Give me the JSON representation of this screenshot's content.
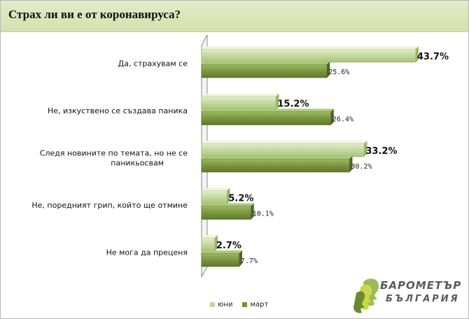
{
  "title": "Страх ли ви е от коронавируса?",
  "colors": {
    "june": "#c3d69b",
    "march": "#77933c",
    "june_dark": "#98b469",
    "march_dark": "#4f6228"
  },
  "chart_data": {
    "type": "bar",
    "orientation": "horizontal",
    "categories": [
      [
        "Да, страхувам се"
      ],
      [
        "Не, изкуствено се създава паника"
      ],
      [
        "Следя новините  по темата, но не се",
        "паникьосвам"
      ],
      [
        "Не, поредният грип, който ще отмине"
      ],
      [
        "Не мога да преценя"
      ]
    ],
    "series": [
      {
        "name": "юни",
        "values": [
          43.7,
          15.2,
          33.2,
          5.2,
          2.7
        ],
        "labels": [
          "43.7%",
          "15.2%",
          "33.2%",
          "5.2%",
          "2.7%"
        ]
      },
      {
        "name": "март",
        "values": [
          25.6,
          26.4,
          30.2,
          10.1,
          7.7
        ],
        "labels": [
          "25.6%",
          "26.4%",
          "30.2%",
          "10.1%",
          "7.7%"
        ]
      }
    ],
    "xlim": [
      0,
      50
    ],
    "legend_position": "bottom",
    "grid": false
  },
  "logo": {
    "line1": "БАРОМЕТЪР",
    "line2": "БЪЛГАРИЯ"
  }
}
